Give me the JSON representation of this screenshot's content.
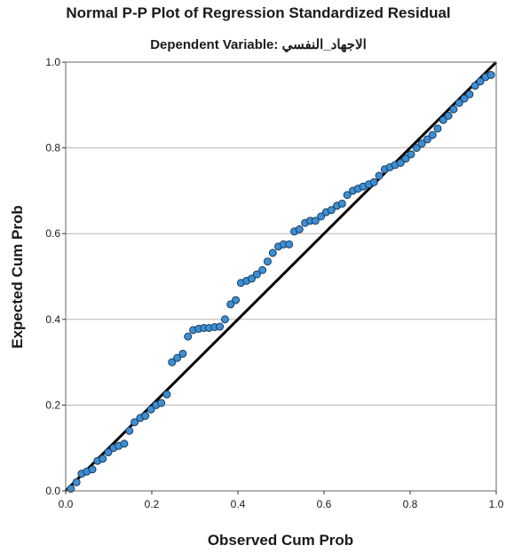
{
  "chart_data": {
    "type": "scatter",
    "title": "Normal P-P Plot of Regression Standardized Residual",
    "subtitle": "Dependent Variable: الاجهاد_النفسي",
    "xlabel": "Observed Cum Prob",
    "ylabel": "Expected Cum Prob",
    "xlim": [
      0,
      1
    ],
    "ylim": [
      0,
      1
    ],
    "x_ticks": [
      "0.0",
      "0.2",
      "0.4",
      "0.6",
      "0.8",
      "1.0"
    ],
    "y_ticks": [
      "0.0",
      "0.2",
      "0.4",
      "0.6",
      "0.8",
      "1.0"
    ],
    "grid": "horizontal",
    "legend": "none",
    "reference_line": {
      "from": [
        0,
        0
      ],
      "to": [
        1,
        1
      ]
    },
    "points": {
      "x": [
        0.012,
        0.025,
        0.037,
        0.049,
        0.062,
        0.074,
        0.086,
        0.099,
        0.111,
        0.123,
        0.136,
        0.148,
        0.16,
        0.173,
        0.185,
        0.198,
        0.21,
        0.222,
        0.235,
        0.247,
        0.259,
        0.272,
        0.284,
        0.296,
        0.309,
        0.321,
        0.333,
        0.346,
        0.358,
        0.37,
        0.383,
        0.395,
        0.407,
        0.42,
        0.432,
        0.444,
        0.457,
        0.469,
        0.481,
        0.494,
        0.506,
        0.519,
        0.531,
        0.543,
        0.556,
        0.568,
        0.58,
        0.593,
        0.605,
        0.617,
        0.63,
        0.642,
        0.654,
        0.667,
        0.679,
        0.691,
        0.704,
        0.716,
        0.728,
        0.741,
        0.753,
        0.765,
        0.778,
        0.79,
        0.802,
        0.815,
        0.827,
        0.84,
        0.852,
        0.864,
        0.877,
        0.889,
        0.901,
        0.914,
        0.926,
        0.938,
        0.951,
        0.963,
        0.975,
        0.988
      ],
      "y": [
        0.005,
        0.02,
        0.04,
        0.045,
        0.05,
        0.07,
        0.075,
        0.09,
        0.1,
        0.105,
        0.11,
        0.14,
        0.16,
        0.17,
        0.175,
        0.19,
        0.2,
        0.205,
        0.225,
        0.3,
        0.31,
        0.32,
        0.36,
        0.375,
        0.378,
        0.38,
        0.38,
        0.382,
        0.383,
        0.4,
        0.435,
        0.445,
        0.485,
        0.49,
        0.495,
        0.505,
        0.515,
        0.535,
        0.555,
        0.57,
        0.575,
        0.575,
        0.605,
        0.61,
        0.625,
        0.63,
        0.63,
        0.64,
        0.65,
        0.655,
        0.665,
        0.67,
        0.69,
        0.7,
        0.705,
        0.71,
        0.715,
        0.72,
        0.735,
        0.75,
        0.755,
        0.76,
        0.765,
        0.775,
        0.785,
        0.8,
        0.81,
        0.82,
        0.83,
        0.845,
        0.865,
        0.875,
        0.89,
        0.905,
        0.915,
        0.925,
        0.945,
        0.955,
        0.965,
        0.97
      ]
    },
    "colors": {
      "marker_fill": "#3d8ed4",
      "marker_stroke": "#1a3d5c",
      "line": "#000000",
      "grid": "#b5b5b5",
      "frame": "#666666"
    }
  }
}
